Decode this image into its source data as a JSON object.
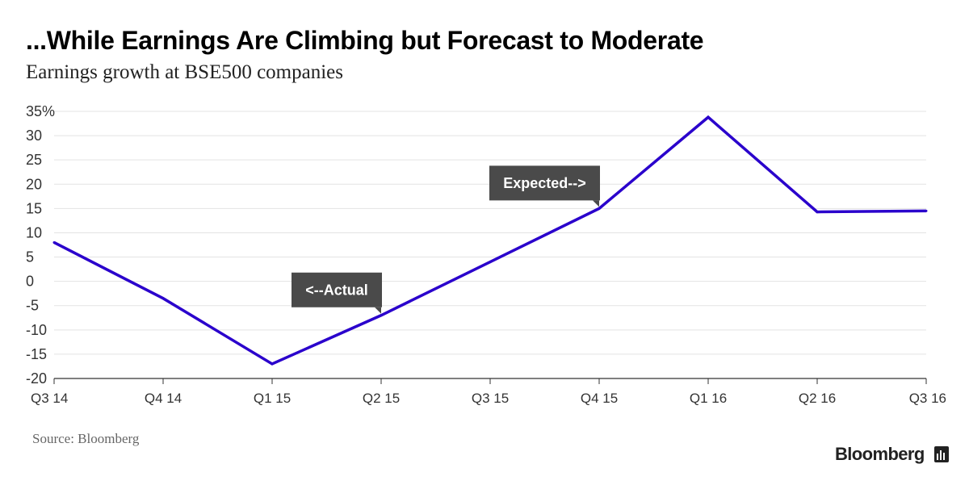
{
  "chart_data": {
    "type": "line",
    "title": "...While Earnings Are Climbing but Forecast to Moderate",
    "subtitle": "Earnings growth at BSE500 companies",
    "categories": [
      "Q3 14",
      "Q4 14",
      "Q1 15",
      "Q2 15",
      "Q3 15",
      "Q4 15",
      "Q1 16",
      "Q2 16",
      "Q3 16"
    ],
    "series": [
      {
        "values": [
          8,
          -3.5,
          -17,
          -7,
          4,
          15,
          33.8,
          14.3,
          14.5
        ]
      }
    ],
    "ylim": [
      -20,
      35
    ],
    "yticks": [
      {
        "value": 35,
        "label": "35%"
      },
      {
        "value": 30,
        "label": "30"
      },
      {
        "value": 25,
        "label": "25"
      },
      {
        "value": 20,
        "label": "20"
      },
      {
        "value": 15,
        "label": "15"
      },
      {
        "value": 10,
        "label": "10"
      },
      {
        "value": 5,
        "label": "5"
      },
      {
        "value": 0,
        "label": "0"
      },
      {
        "value": -5,
        "label": "-5"
      },
      {
        "value": -10,
        "label": "-10"
      },
      {
        "value": -15,
        "label": "-15"
      },
      {
        "value": -20,
        "label": "-20"
      }
    ],
    "annotations": [
      {
        "text": "<--Actual",
        "category_index": 3
      },
      {
        "text": "Expected-->",
        "category_index": 5
      }
    ],
    "grid": true,
    "line_color": "#2A00CC",
    "source": "Source: Bloomberg",
    "brand": "Bloomberg"
  }
}
